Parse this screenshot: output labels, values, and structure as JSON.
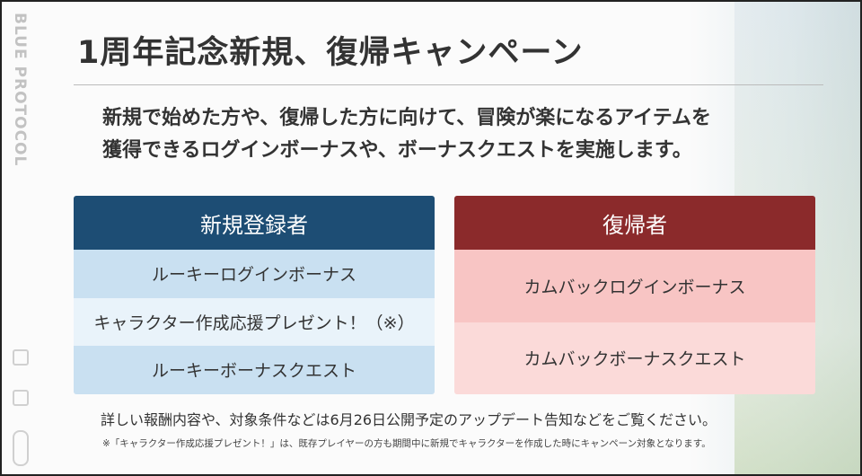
{
  "logo": "BLUE PROTOCOL",
  "title": "1周年記念新規、復帰キャンペーン",
  "intro": [
    "新規で始めた方や、復帰した方に向けて、冒険が楽になるアイテムを",
    "獲得できるログインボーナスや、ボーナスクエストを実施します。"
  ],
  "new_users": {
    "header": "新規登録者",
    "items": [
      "ルーキーログインボーナス",
      "キャラクター作成応援プレゼント！（※）",
      "ルーキーボーナスクエスト"
    ]
  },
  "returning": {
    "header": "復帰者",
    "items": [
      "カムバックログインボーナス",
      "カムバックボーナスクエスト"
    ]
  },
  "note": "詳しい報酬内容や、対象条件などは6月26日公開予定のアップデート告知などをご覧ください。",
  "footnote": "※「キャラクター作成応援プレゼント！」は、既存プレイヤーの方も期間中に新規でキャラクターを作成した時にキャンペーン対象となります。",
  "colors": {
    "new_header": "#1d4d74",
    "return_header": "#8b2a2b"
  }
}
